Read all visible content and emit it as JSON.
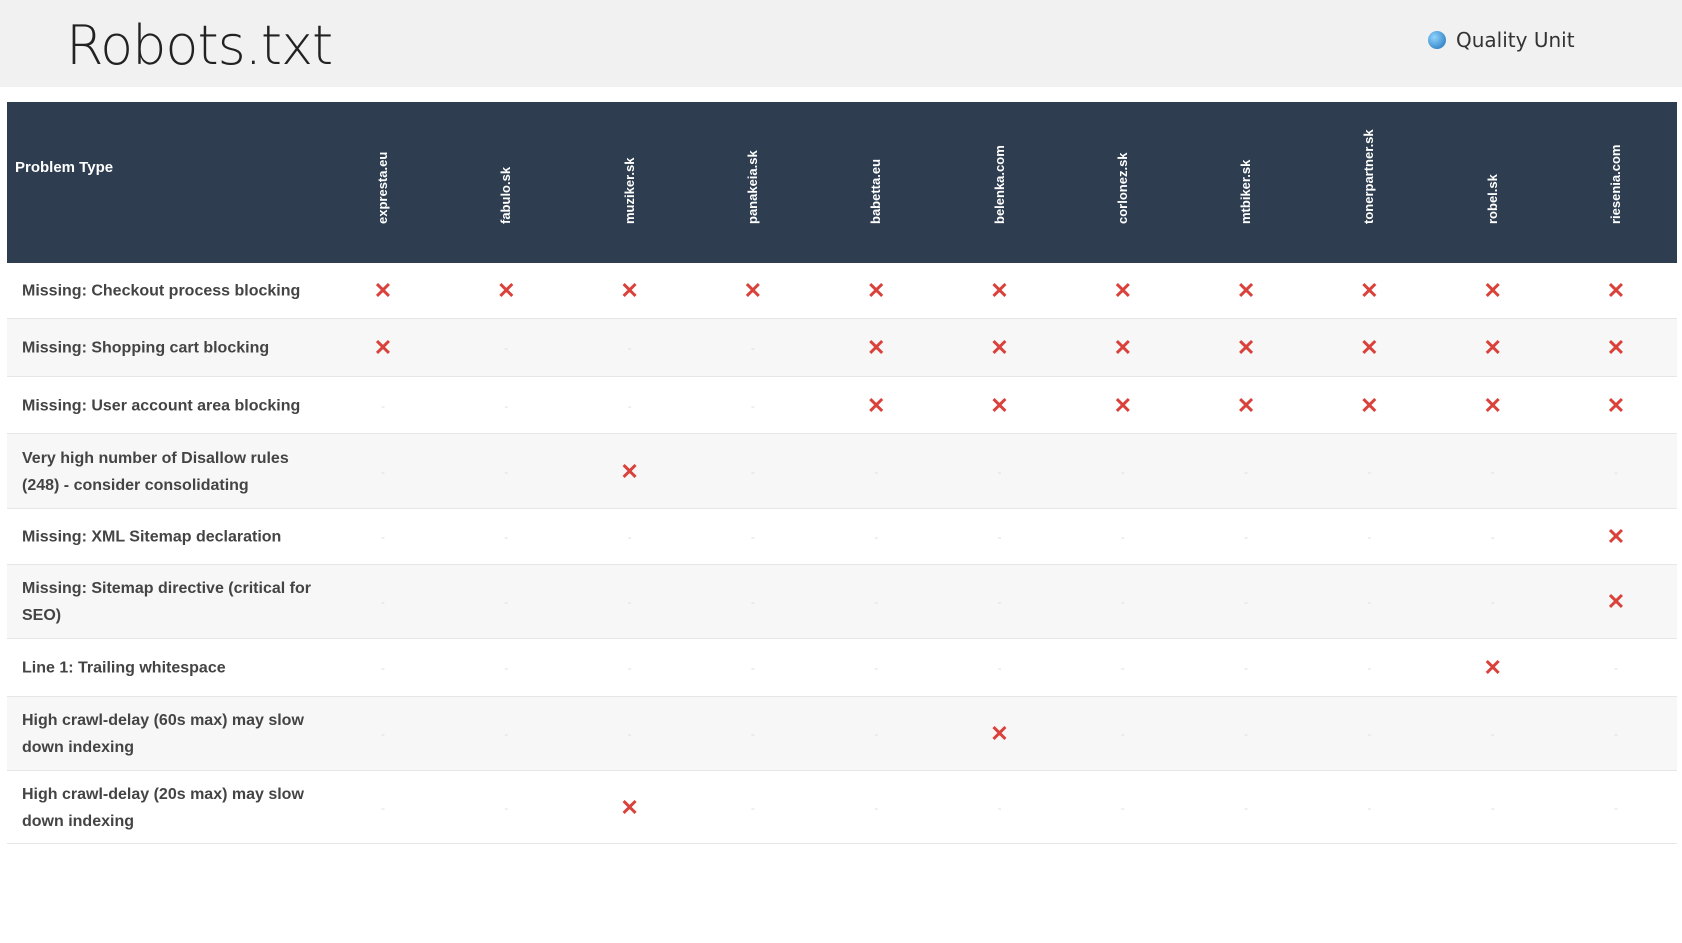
{
  "header": {
    "title": "Robots.txt",
    "brand": "Quality Unit"
  },
  "table": {
    "first_header": "Problem Type",
    "columns": [
      "expresta.eu",
      "fabulo.sk",
      "muziker.sk",
      "panakeia.sk",
      "babetta.eu",
      "belenka.com",
      "corlonez.sk",
      "mtbiker.sk",
      "tonerpartner.sk",
      "robel.sk",
      "riesenia.com"
    ],
    "rows": [
      {
        "label": "Missing: Checkout process blocking",
        "cells": [
          "✕",
          "✕",
          "✕",
          "✕",
          "✕",
          "✕",
          "✕",
          "✕",
          "✕",
          "✕",
          "✕"
        ]
      },
      {
        "label": "Missing: Shopping cart blocking",
        "cells": [
          "✕",
          "-",
          "-",
          "-",
          "✕",
          "✕",
          "✕",
          "✕",
          "✕",
          "✕",
          "✕"
        ]
      },
      {
        "label": "Missing: User account area blocking",
        "cells": [
          "-",
          "-",
          "-",
          "-",
          "✕",
          "✕",
          "✕",
          "✕",
          "✕",
          "✕",
          "✕"
        ]
      },
      {
        "label": "Very high number of Disallow rules (248) - consider consolidating",
        "cells": [
          "-",
          "-",
          "✕",
          "-",
          "-",
          "-",
          "-",
          "-",
          "-",
          "-",
          "-"
        ]
      },
      {
        "label": "Missing: XML Sitemap declaration",
        "cells": [
          "-",
          "-",
          "-",
          "-",
          "-",
          "-",
          "-",
          "-",
          "-",
          "-",
          "✕"
        ]
      },
      {
        "label": "Missing: Sitemap directive (critical for SEO)",
        "cells": [
          "-",
          "-",
          "-",
          "-",
          "-",
          "-",
          "-",
          "-",
          "-",
          "-",
          "✕"
        ]
      },
      {
        "label": "Line 1: Trailing whitespace",
        "cells": [
          "-",
          "-",
          "-",
          "-",
          "-",
          "-",
          "-",
          "-",
          "-",
          "✕",
          "-"
        ]
      },
      {
        "label": "High crawl-delay (60s max) may slow down indexing",
        "cells": [
          "-",
          "-",
          "-",
          "-",
          "-",
          "✕",
          "-",
          "-",
          "-",
          "-",
          "-"
        ]
      },
      {
        "label": "High crawl-delay (20s max) may slow down indexing",
        "cells": [
          "-",
          "-",
          "✕",
          "-",
          "-",
          "-",
          "-",
          "-",
          "-",
          "-",
          "-"
        ]
      }
    ]
  }
}
